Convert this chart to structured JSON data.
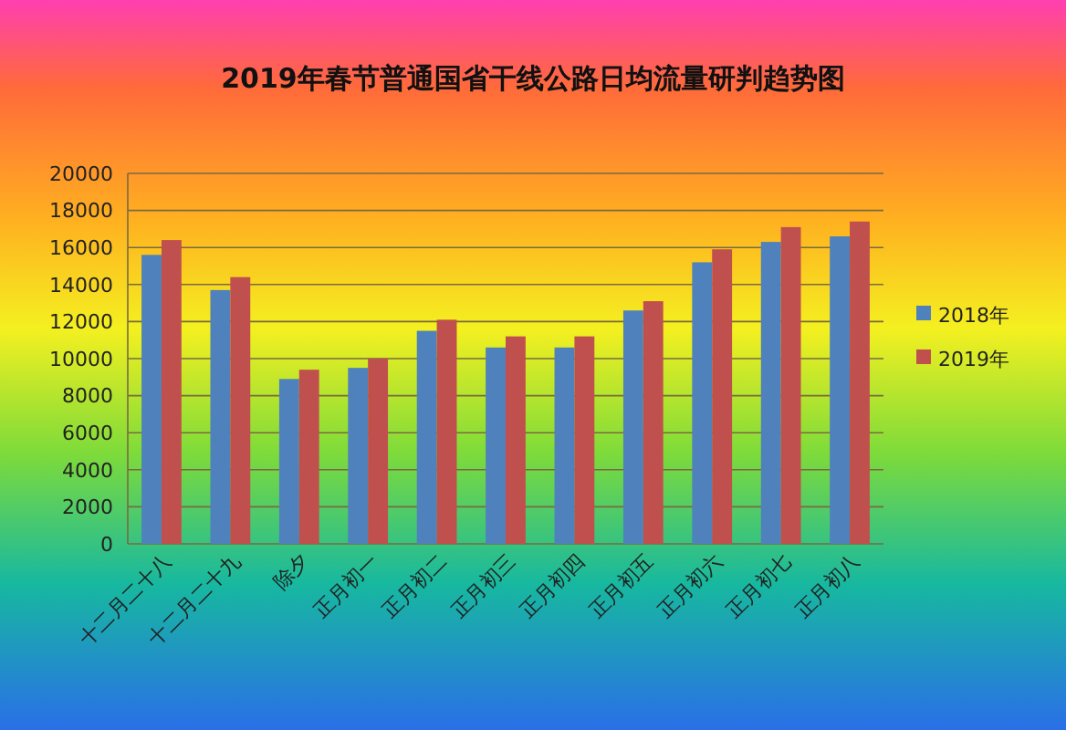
{
  "chart_data": {
    "type": "bar",
    "title": "2019年春节普通国省干线公路日均流量研判趋势图",
    "categories": [
      "十二月二十八",
      "十二月二十九",
      "除夕",
      "正月初一",
      "正月初二",
      "正月初三",
      "正月初四",
      "正月初五",
      "正月初六",
      "正月初七",
      "正月初八"
    ],
    "series": [
      {
        "name": "2018年",
        "color": "#4f81bd",
        "values": [
          15600,
          13700,
          8900,
          9500,
          11500,
          10600,
          10600,
          12600,
          15200,
          16300,
          16600
        ]
      },
      {
        "name": "2019年",
        "color": "#c0504d",
        "values": [
          16400,
          14400,
          9400,
          10000,
          12100,
          11200,
          11200,
          13100,
          15900,
          17100,
          17400
        ]
      }
    ],
    "ylim": [
      0,
      20000
    ],
    "yticks": [
      0,
      2000,
      4000,
      6000,
      8000,
      10000,
      12000,
      14000,
      16000,
      18000,
      20000
    ],
    "grid": "y",
    "legend": "right"
  }
}
